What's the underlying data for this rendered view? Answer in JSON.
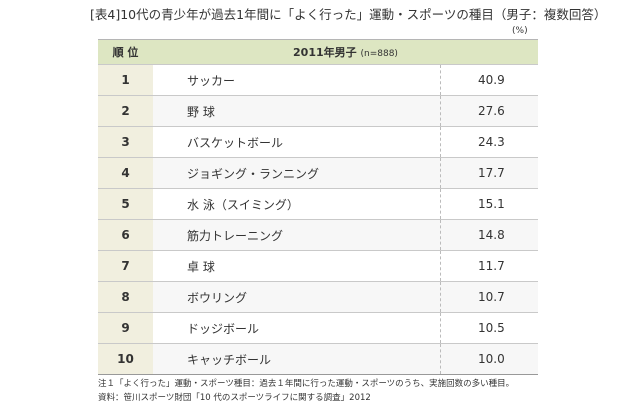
{
  "title": "[表4]10代の青少年が過去1年間に「よく行った」運動・スポーツの種目（男子：複数回答）",
  "unit": "(%)",
  "table": {
    "header": {
      "rank": "順 位",
      "column": "2011年男子",
      "sample": "(n=888)"
    },
    "rows": [
      [
        "1",
        "サッカー",
        "40.9"
      ],
      [
        "2",
        "野 球",
        "27.6"
      ],
      [
        "3",
        "バスケットボール",
        "24.3"
      ],
      [
        "4",
        "ジョギング・ランニング",
        "17.7"
      ],
      [
        "5",
        "水 泳（スイミング）",
        "15.1"
      ],
      [
        "6",
        "筋力トレーニング",
        "14.8"
      ],
      [
        "7",
        "卓 球",
        "11.7"
      ],
      [
        "8",
        "ボウリング",
        "10.7"
      ],
      [
        "9",
        "ドッジボール",
        "10.5"
      ],
      [
        "10",
        "キャッチボール",
        "10.0"
      ]
    ]
  },
  "notes": [
    "注１「よく行った」運動・スポーツ種目：過去１年間に行った運動・スポーツのうち、実施回数の多い種目。",
    "資料：笹川スポーツ財団「10 代のスポーツライフに関する調査」2012"
  ]
}
